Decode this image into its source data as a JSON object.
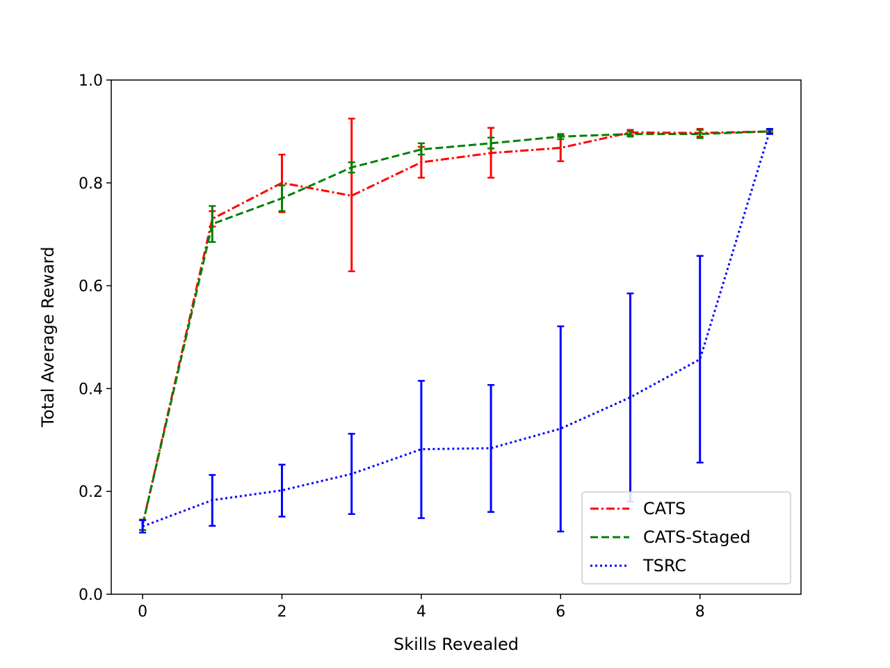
{
  "chart_data": {
    "type": "line",
    "title": "",
    "xlabel": "Skills Revealed",
    "ylabel": "Total Average Reward",
    "xlim": [
      -0.45,
      9.45
    ],
    "ylim": [
      0.0,
      1.0
    ],
    "xticks": [
      0,
      2,
      4,
      6,
      8
    ],
    "yticks": [
      0.0,
      0.2,
      0.4,
      0.6,
      0.8,
      1.0
    ],
    "xtick_labels": [
      "0",
      "2",
      "4",
      "6",
      "8"
    ],
    "ytick_labels": [
      "0.0",
      "0.2",
      "0.4",
      "0.6",
      "0.8",
      "1.0"
    ],
    "grid": false,
    "legend_position": "lower-right",
    "x": [
      0,
      1,
      2,
      3,
      4,
      5,
      6,
      7,
      8,
      9
    ],
    "series": [
      {
        "name": "CATS",
        "color": "#ff0000",
        "style": "dashdot",
        "values": [
          0.135,
          0.73,
          0.8,
          0.775,
          0.84,
          0.858,
          0.868,
          0.898,
          0.897,
          0.9
        ],
        "err_low": [
          0.125,
          0.715,
          0.743,
          0.628,
          0.81,
          0.81,
          0.842,
          0.893,
          0.89,
          0.898
        ],
        "err_high": [
          0.145,
          0.745,
          0.855,
          0.925,
          0.87,
          0.907,
          0.893,
          0.903,
          0.905,
          0.902
        ]
      },
      {
        "name": "CATS-Staged",
        "color": "#008000",
        "style": "dashed",
        "values": [
          0.135,
          0.72,
          0.77,
          0.83,
          0.865,
          0.877,
          0.89,
          0.895,
          0.895,
          0.9
        ],
        "err_low": [
          0.125,
          0.685,
          0.745,
          0.82,
          0.855,
          0.867,
          0.885,
          0.89,
          0.887,
          0.897
        ],
        "err_high": [
          0.145,
          0.755,
          0.795,
          0.84,
          0.877,
          0.888,
          0.895,
          0.9,
          0.903,
          0.903
        ]
      },
      {
        "name": "TSRC",
        "color": "#0000ff",
        "style": "dotted",
        "values": [
          0.132,
          0.183,
          0.202,
          0.234,
          0.282,
          0.284,
          0.322,
          0.383,
          0.457,
          0.9
        ],
        "err_low": [
          0.12,
          0.133,
          0.151,
          0.156,
          0.148,
          0.16,
          0.122,
          0.18,
          0.256,
          0.895
        ],
        "err_high": [
          0.144,
          0.232,
          0.252,
          0.312,
          0.415,
          0.407,
          0.521,
          0.585,
          0.658,
          0.905
        ]
      }
    ]
  }
}
